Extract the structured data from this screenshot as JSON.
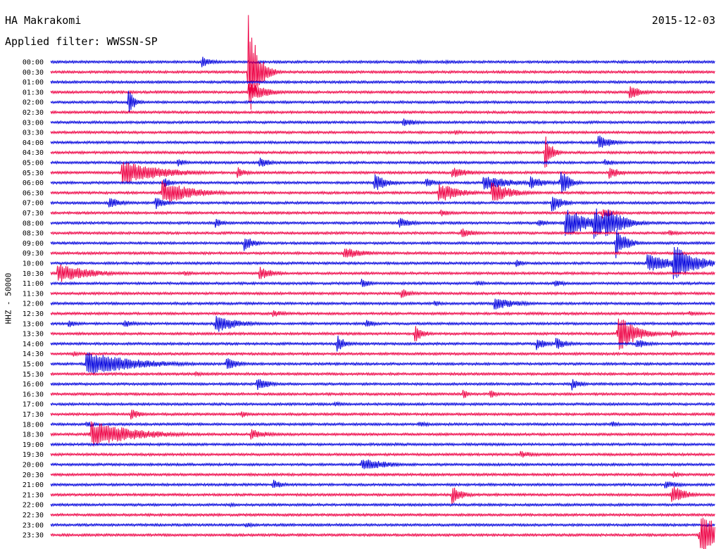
{
  "header": {
    "station": "HA Makrakomi",
    "filter": "Applied filter: WWSSN-SP",
    "date": "2015-12-03"
  },
  "chart_data": {
    "type": "line",
    "subtype": "helicorder",
    "ylabel": "HHZ - 50000",
    "row_labels": [
      "00:00",
      "00:30",
      "01:00",
      "01:30",
      "02:00",
      "02:30",
      "03:00",
      "03:30",
      "04:00",
      "04:30",
      "05:00",
      "05:30",
      "06:00",
      "06:30",
      "07:00",
      "07:30",
      "08:00",
      "08:30",
      "09:00",
      "09:30",
      "10:00",
      "10:30",
      "11:00",
      "11:30",
      "12:00",
      "12:30",
      "13:00",
      "13:30",
      "14:00",
      "14:30",
      "15:00",
      "15:30",
      "16:00",
      "16:30",
      "17:00",
      "17:30",
      "18:00",
      "18:30",
      "19:00",
      "19:30",
      "20:00",
      "20:30",
      "21:00",
      "21:30",
      "22:00",
      "22:30",
      "23:00",
      "23:30"
    ],
    "colors": [
      "#0000dd",
      "#ee0044"
    ],
    "color_pattern": "alternating by row, starting blue",
    "x_unit": "minutes into each 30-minute row",
    "x_range": [
      0,
      30
    ],
    "events": [
      {
        "row": 0,
        "x": 6.8,
        "amp": 9,
        "dur": 0.5
      },
      {
        "row": 0,
        "x": 16.5,
        "amp": 3,
        "dur": 1.0
      },
      {
        "row": 0,
        "x": 17.8,
        "amp": 3,
        "dur": 0.6
      },
      {
        "row": 1,
        "x": 8.9,
        "amp": 90,
        "dur": 0.4
      },
      {
        "row": 3,
        "x": 8.9,
        "amp": 14,
        "dur": 0.9
      },
      {
        "row": 3,
        "x": 26.1,
        "amp": 12,
        "dur": 0.5
      },
      {
        "row": 3,
        "x": 24.0,
        "amp": 3,
        "dur": 0.6
      },
      {
        "row": 3,
        "x": 26.8,
        "amp": 3,
        "dur": 0.6
      },
      {
        "row": 4,
        "x": 3.5,
        "amp": 20,
        "dur": 0.3
      },
      {
        "row": 6,
        "x": 15.9,
        "amp": 6,
        "dur": 0.8
      },
      {
        "row": 7,
        "x": 18.2,
        "amp": 4,
        "dur": 0.5
      },
      {
        "row": 8,
        "x": 24.7,
        "amp": 12,
        "dur": 0.6
      },
      {
        "row": 9,
        "x": 22.3,
        "amp": 30,
        "dur": 0.3
      },
      {
        "row": 10,
        "x": 9.4,
        "amp": 8,
        "dur": 0.6
      },
      {
        "row": 10,
        "x": 5.7,
        "amp": 6,
        "dur": 0.5
      },
      {
        "row": 10,
        "x": 25.0,
        "amp": 5,
        "dur": 0.6
      },
      {
        "row": 11,
        "x": 3.2,
        "amp": 18,
        "dur": 1.8
      },
      {
        "row": 11,
        "x": 8.4,
        "amp": 10,
        "dur": 0.4
      },
      {
        "row": 11,
        "x": 18.1,
        "amp": 8,
        "dur": 0.9
      },
      {
        "row": 11,
        "x": 25.2,
        "amp": 10,
        "dur": 0.5
      },
      {
        "row": 12,
        "x": 14.6,
        "amp": 14,
        "dur": 0.6
      },
      {
        "row": 12,
        "x": 19.5,
        "amp": 12,
        "dur": 1.2
      },
      {
        "row": 12,
        "x": 21.6,
        "amp": 10,
        "dur": 0.8
      },
      {
        "row": 12,
        "x": 23.0,
        "amp": 22,
        "dur": 0.4
      },
      {
        "row": 12,
        "x": 5.1,
        "amp": 8,
        "dur": 0.4
      },
      {
        "row": 12,
        "x": 16.9,
        "amp": 8,
        "dur": 0.5
      },
      {
        "row": 13,
        "x": 5.0,
        "amp": 18,
        "dur": 1.4
      },
      {
        "row": 13,
        "x": 17.5,
        "amp": 16,
        "dur": 0.9
      },
      {
        "row": 13,
        "x": 19.9,
        "amp": 16,
        "dur": 0.9
      },
      {
        "row": 14,
        "x": 2.6,
        "amp": 10,
        "dur": 0.6
      },
      {
        "row": 14,
        "x": 4.7,
        "amp": 10,
        "dur": 0.5
      },
      {
        "row": 14,
        "x": 22.6,
        "amp": 14,
        "dur": 0.5
      },
      {
        "row": 15,
        "x": 17.6,
        "amp": 6,
        "dur": 0.5
      },
      {
        "row": 15,
        "x": 24.9,
        "amp": 8,
        "dur": 0.6
      },
      {
        "row": 16,
        "x": 15.7,
        "amp": 8,
        "dur": 0.7
      },
      {
        "row": 16,
        "x": 23.2,
        "amp": 22,
        "dur": 1.2
      },
      {
        "row": 16,
        "x": 24.5,
        "amp": 24,
        "dur": 0.9
      },
      {
        "row": 16,
        "x": 25.0,
        "amp": 26,
        "dur": 0.8
      },
      {
        "row": 16,
        "x": 7.4,
        "amp": 8,
        "dur": 0.4
      },
      {
        "row": 16,
        "x": 22.0,
        "amp": 6,
        "dur": 0.5
      },
      {
        "row": 17,
        "x": 18.5,
        "amp": 8,
        "dur": 0.6
      },
      {
        "row": 17,
        "x": 27.9,
        "amp": 6,
        "dur": 0.4
      },
      {
        "row": 18,
        "x": 8.7,
        "amp": 12,
        "dur": 0.5
      },
      {
        "row": 18,
        "x": 25.5,
        "amp": 22,
        "dur": 0.5
      },
      {
        "row": 19,
        "x": 13.2,
        "amp": 10,
        "dur": 0.9
      },
      {
        "row": 20,
        "x": 26.9,
        "amp": 14,
        "dur": 1.2
      },
      {
        "row": 20,
        "x": 28.1,
        "amp": 28,
        "dur": 1.0
      },
      {
        "row": 20,
        "x": 21.0,
        "amp": 6,
        "dur": 0.4
      },
      {
        "row": 21,
        "x": 0.3,
        "amp": 14,
        "dur": 1.5
      },
      {
        "row": 21,
        "x": 9.4,
        "amp": 10,
        "dur": 0.7
      },
      {
        "row": 21,
        "x": 6.0,
        "amp": 4,
        "dur": 0.6
      },
      {
        "row": 22,
        "x": 14.0,
        "amp": 8,
        "dur": 0.4
      },
      {
        "row": 22,
        "x": 19.2,
        "amp": 4,
        "dur": 0.6
      },
      {
        "row": 22,
        "x": 22.7,
        "amp": 5,
        "dur": 0.7
      },
      {
        "row": 23,
        "x": 15.8,
        "amp": 8,
        "dur": 0.5
      },
      {
        "row": 24,
        "x": 20.0,
        "amp": 10,
        "dur": 1.0
      },
      {
        "row": 24,
        "x": 17.3,
        "amp": 5,
        "dur": 0.4
      },
      {
        "row": 25,
        "x": 10.0,
        "amp": 5,
        "dur": 0.8
      },
      {
        "row": 25,
        "x": 28.8,
        "amp": 4,
        "dur": 0.6
      },
      {
        "row": 26,
        "x": 0.8,
        "amp": 6,
        "dur": 0.5
      },
      {
        "row": 26,
        "x": 3.3,
        "amp": 6,
        "dur": 0.6
      },
      {
        "row": 26,
        "x": 7.4,
        "amp": 14,
        "dur": 1.0
      },
      {
        "row": 26,
        "x": 14.2,
        "amp": 6,
        "dur": 0.5
      },
      {
        "row": 27,
        "x": 16.4,
        "amp": 14,
        "dur": 0.4
      },
      {
        "row": 27,
        "x": 25.6,
        "amp": 28,
        "dur": 0.8
      },
      {
        "row": 27,
        "x": 28.0,
        "amp": 8,
        "dur": 0.4
      },
      {
        "row": 28,
        "x": 12.9,
        "amp": 14,
        "dur": 0.4
      },
      {
        "row": 28,
        "x": 21.9,
        "amp": 10,
        "dur": 0.5
      },
      {
        "row": 28,
        "x": 22.8,
        "amp": 10,
        "dur": 0.5
      },
      {
        "row": 28,
        "x": 26.4,
        "amp": 8,
        "dur": 0.6
      },
      {
        "row": 29,
        "x": 1.0,
        "amp": 4,
        "dur": 0.6
      },
      {
        "row": 30,
        "x": 1.6,
        "amp": 18,
        "dur": 2.2
      },
      {
        "row": 30,
        "x": 7.9,
        "amp": 10,
        "dur": 0.6
      },
      {
        "row": 31,
        "x": 6.5,
        "amp": 4,
        "dur": 0.6
      },
      {
        "row": 32,
        "x": 9.3,
        "amp": 10,
        "dur": 0.6
      },
      {
        "row": 32,
        "x": 23.5,
        "amp": 10,
        "dur": 0.4
      },
      {
        "row": 33,
        "x": 18.6,
        "amp": 10,
        "dur": 0.2
      },
      {
        "row": 33,
        "x": 19.8,
        "amp": 8,
        "dur": 0.3
      },
      {
        "row": 34,
        "x": 12.8,
        "amp": 4,
        "dur": 0.6
      },
      {
        "row": 35,
        "x": 3.6,
        "amp": 8,
        "dur": 0.5
      },
      {
        "row": 35,
        "x": 8.6,
        "amp": 6,
        "dur": 0.3
      },
      {
        "row": 36,
        "x": 16.6,
        "amp": 4,
        "dur": 0.7
      },
      {
        "row": 36,
        "x": 25.3,
        "amp": 6,
        "dur": 0.4
      },
      {
        "row": 36,
        "x": 1.6,
        "amp": 6,
        "dur": 0.4
      },
      {
        "row": 37,
        "x": 1.8,
        "amp": 20,
        "dur": 2.0
      },
      {
        "row": 37,
        "x": 9.0,
        "amp": 8,
        "dur": 0.9
      },
      {
        "row": 38,
        "x": 15.5,
        "amp": 3,
        "dur": 0.4
      },
      {
        "row": 39,
        "x": 21.2,
        "amp": 5,
        "dur": 0.9
      },
      {
        "row": 40,
        "x": 14.0,
        "amp": 10,
        "dur": 1.2
      },
      {
        "row": 41,
        "x": 28.1,
        "amp": 5,
        "dur": 0.4
      },
      {
        "row": 42,
        "x": 10.0,
        "amp": 8,
        "dur": 0.5
      },
      {
        "row": 42,
        "x": 27.7,
        "amp": 6,
        "dur": 0.8
      },
      {
        "row": 43,
        "x": 18.1,
        "amp": 14,
        "dur": 0.5
      },
      {
        "row": 43,
        "x": 28.0,
        "amp": 16,
        "dur": 0.6
      },
      {
        "row": 44,
        "x": 8.1,
        "amp": 4,
        "dur": 0.3
      },
      {
        "row": 46,
        "x": 8.8,
        "amp": 4,
        "dur": 0.6
      },
      {
        "row": 47,
        "x": 29.3,
        "amp": 32,
        "dur": 1.2
      }
    ]
  }
}
